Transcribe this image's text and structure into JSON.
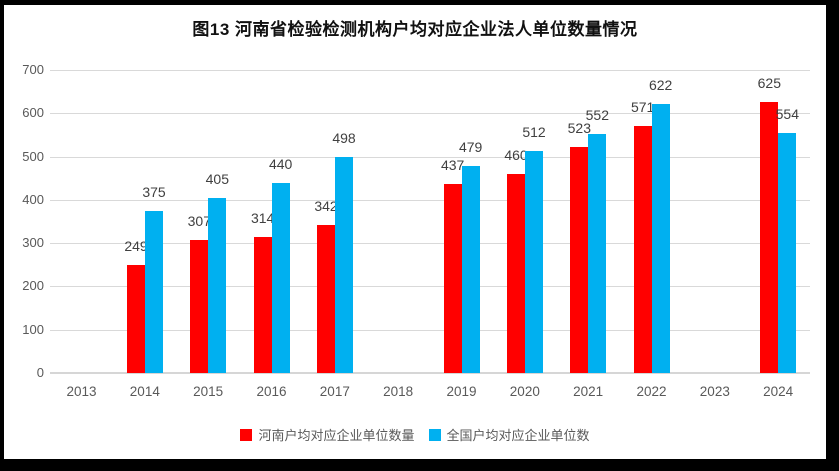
{
  "chart_data": {
    "type": "bar",
    "title": "图13  河南省检验检测机构户均对应企业法人单位数量情况",
    "categories": [
      "2013",
      "2014",
      "2015",
      "2016",
      "2017",
      "2018",
      "2019",
      "2020",
      "2021",
      "2022",
      "2023",
      "2024"
    ],
    "series": [
      {
        "name": "河南户均对应企业单位数量",
        "color": "#FF0000",
        "values": [
          null,
          249,
          307,
          314,
          342,
          null,
          437,
          460,
          523,
          571,
          null,
          625
        ]
      },
      {
        "name": "全国户均对应企业单位数",
        "color": "#00B0F0",
        "values": [
          null,
          375,
          405,
          440,
          498,
          null,
          479,
          512,
          552,
          622,
          null,
          554
        ]
      }
    ],
    "xlabel": "",
    "ylabel": "",
    "ylim": [
      0,
      700
    ],
    "yticks": [
      0,
      100,
      200,
      300,
      400,
      500,
      600,
      700
    ],
    "grid": true,
    "legend_position": "bottom",
    "data_labels": true
  },
  "colors": {
    "series_henan": "#FF0000",
    "series_national": "#00B0F0",
    "gridline": "#D9D9D9",
    "axis_text": "#595959",
    "data_label_text": "#404040",
    "chart_background": "#FFFFFF",
    "page_background": "#000000"
  }
}
